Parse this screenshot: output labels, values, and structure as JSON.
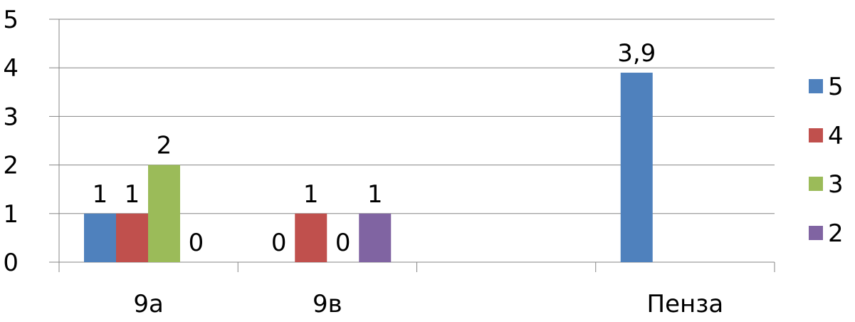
{
  "chart_data": {
    "type": "bar",
    "categories": [
      "9а",
      "9в",
      "",
      "Пенза"
    ],
    "series": [
      {
        "name": "5",
        "color": "#4F81BD",
        "values": [
          1,
          0,
          null,
          3.9
        ]
      },
      {
        "name": "4",
        "color": "#C0504D",
        "values": [
          1,
          1,
          null,
          null
        ]
      },
      {
        "name": "3",
        "color": "#9BBB59",
        "values": [
          2,
          0,
          null,
          null
        ]
      },
      {
        "name": "2",
        "color": "#8064A2",
        "values": [
          0,
          1,
          null,
          null
        ]
      }
    ],
    "data_labels": [
      [
        "1",
        "0",
        "",
        "3,9"
      ],
      [
        "1",
        "1",
        "",
        ""
      ],
      [
        "2",
        "0",
        "",
        ""
      ],
      [
        "0",
        "1",
        "",
        ""
      ]
    ],
    "ylim": [
      0,
      5
    ],
    "yticks": [
      "0",
      "1",
      "2",
      "3",
      "4",
      "5"
    ],
    "grid": true,
    "legend": "right",
    "title": "",
    "xlabel": "",
    "ylabel": ""
  }
}
